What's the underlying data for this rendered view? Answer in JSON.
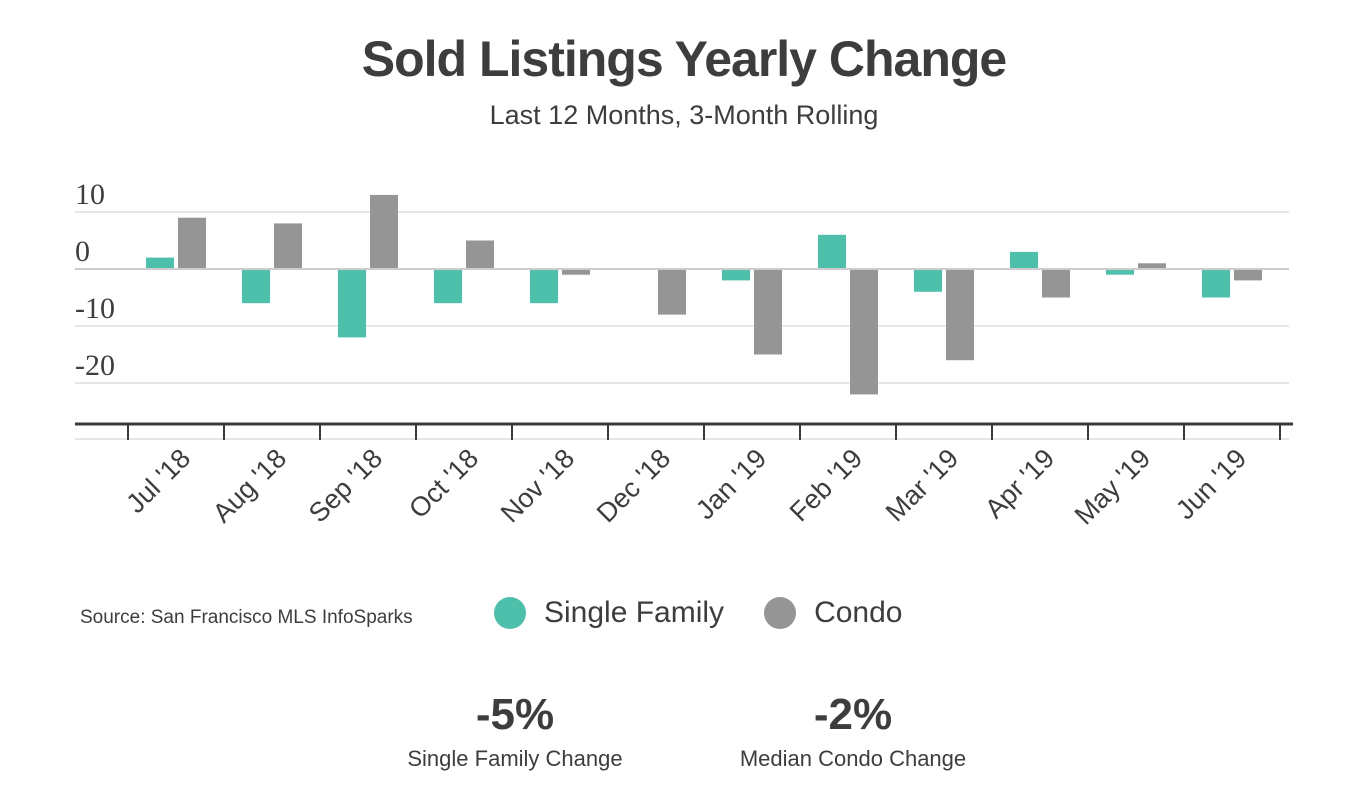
{
  "header": {
    "title": "Sold Listings Yearly Change",
    "subtitle": "Last 12 Months, 3-Month Rolling"
  },
  "chart_data": {
    "type": "bar",
    "categories": [
      "Jul '18",
      "Aug '18",
      "Sep '18",
      "Oct '18",
      "Nov '18",
      "Dec '18",
      "Jan '19",
      "Feb '19",
      "Mar '19",
      "Apr '19",
      "May '19",
      "Jun '19"
    ],
    "series": [
      {
        "name": "Single Family",
        "color": "#4dbfab",
        "values": [
          2,
          -6,
          -12,
          -6,
          -6,
          0,
          -2,
          6,
          -4,
          3,
          -1,
          -5
        ]
      },
      {
        "name": "Condo",
        "color": "#959595",
        "values": [
          9,
          8,
          13,
          5,
          -1,
          -8,
          -15,
          -22,
          -16,
          -5,
          1,
          -2
        ]
      }
    ],
    "y_ticks": [
      10,
      0,
      -10,
      -20
    ],
    "ylim": [
      -27,
      12
    ],
    "grid": true,
    "legend": "bottom"
  },
  "footer": {
    "source": "Source:  San Francisco MLS InfoSparks"
  },
  "legend": [
    {
      "label": "Single Family",
      "color": "#4dbfab"
    },
    {
      "label": "Condo",
      "color": "#959595"
    }
  ],
  "stats": [
    {
      "value": "-5%",
      "label": "Single Family  Change"
    },
    {
      "value": "-2%",
      "label": "Median Condo Change"
    }
  ]
}
